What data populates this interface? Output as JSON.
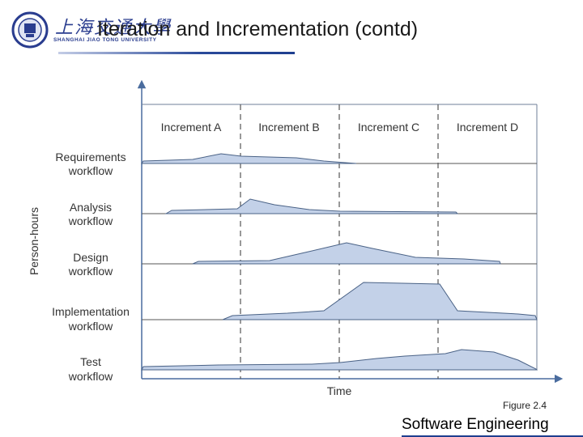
{
  "header": {
    "title": "Iteration and Incrementation (contd)",
    "logo_chinese": "上海交通大學",
    "logo_english": "SHANGHAI JIAO TONG UNIVERSITY"
  },
  "diagram": {
    "y_axis_label": "Person-hours",
    "x_axis_label": "Time",
    "increments": [
      "Increment A",
      "Increment B",
      "Increment C",
      "Increment D"
    ],
    "workflows": [
      {
        "line1": "Requirements",
        "line2": "workflow"
      },
      {
        "line1": "Analysis",
        "line2": "workflow"
      },
      {
        "line1": "Design",
        "line2": "workflow"
      },
      {
        "line1": "Implementation",
        "line2": "workflow"
      },
      {
        "line1": "Test",
        "line2": "workflow"
      }
    ],
    "fill_color": "#c3d1e8",
    "stroke_color": "#4a6286"
  },
  "caption": "Figure 2.4",
  "footer": "Software Engineering"
}
